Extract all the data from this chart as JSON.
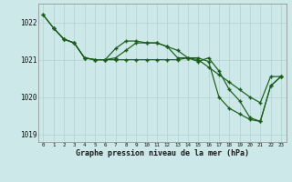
{
  "title": "Graphe pression niveau de la mer (hPa)",
  "bg_color": "#cce8e8",
  "line_color": "#1a5c1a",
  "grid_color": "#b8d4d4",
  "xlim": [
    -0.5,
    23.5
  ],
  "ylim": [
    1018.8,
    1022.5
  ],
  "yticks": [
    1019,
    1020,
    1021,
    1022
  ],
  "xtick_labels": [
    "0",
    "1",
    "2",
    "3",
    "4",
    "5",
    "6",
    "7",
    "8",
    "9",
    "10",
    "11",
    "12",
    "13",
    "14",
    "15",
    "16",
    "17",
    "18",
    "19",
    "20",
    "21",
    "22",
    "23"
  ],
  "series1_x": [
    0,
    1,
    2,
    3,
    4,
    5,
    6,
    7,
    8,
    9,
    10,
    11,
    12,
    13,
    14,
    15,
    16,
    17,
    18,
    19,
    20,
    21,
    22,
    23
  ],
  "series1_y": [
    1022.2,
    1021.85,
    1021.55,
    1021.45,
    1021.05,
    1021.0,
    1021.0,
    1021.0,
    1021.0,
    1021.0,
    1021.0,
    1021.0,
    1021.0,
    1021.0,
    1021.05,
    1021.0,
    1020.8,
    1020.6,
    1020.4,
    1020.2,
    1020.0,
    1019.85,
    1020.55,
    1020.55
  ],
  "series2_x": [
    0,
    1,
    2,
    3,
    4,
    5,
    6,
    7,
    8,
    9,
    10,
    11,
    12,
    13,
    14,
    15,
    16,
    17,
    18,
    19,
    20,
    21,
    22,
    23
  ],
  "series2_y": [
    1022.2,
    1021.85,
    1021.55,
    1021.45,
    1021.05,
    1021.0,
    1021.0,
    1021.3,
    1021.5,
    1021.5,
    1021.45,
    1021.45,
    1021.35,
    1021.05,
    1021.05,
    1020.95,
    1021.05,
    1020.7,
    1020.2,
    1019.9,
    1019.45,
    1019.35,
    1020.3,
    1020.55
  ],
  "series3_x": [
    1,
    2,
    3,
    4,
    5,
    6,
    7,
    8,
    9,
    10,
    11,
    12,
    13,
    14,
    15,
    16,
    17,
    18,
    19,
    20,
    21,
    22,
    23
  ],
  "series3_y": [
    1021.85,
    1021.55,
    1021.45,
    1021.05,
    1021.0,
    1021.0,
    1021.05,
    1021.25,
    1021.45,
    1021.45,
    1021.45,
    1021.35,
    1021.25,
    1021.05,
    1021.05,
    1020.95,
    1020.0,
    1019.7,
    1019.55,
    1019.4,
    1019.35,
    1020.3,
    1020.55
  ]
}
